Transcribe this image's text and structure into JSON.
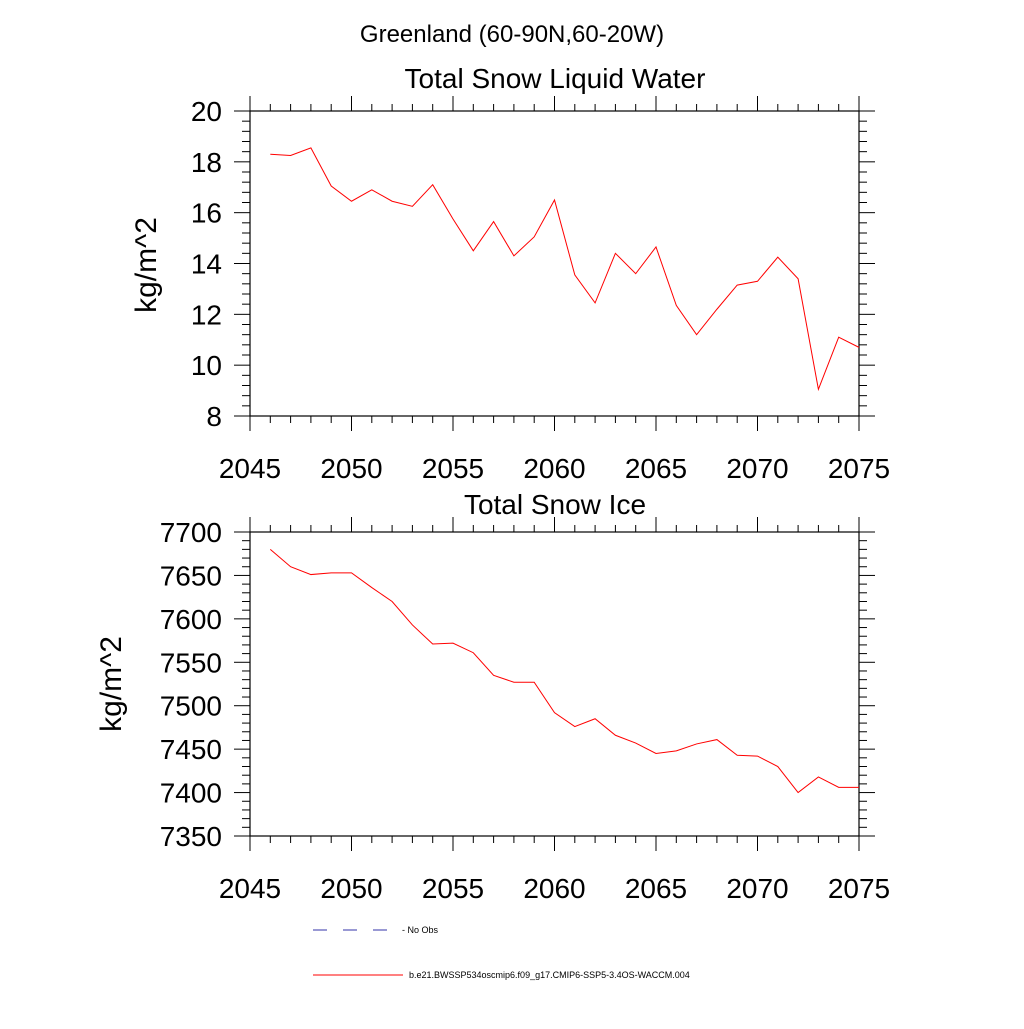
{
  "suptitle": "Greenland (60-90N,60-20W)",
  "colors": {
    "model": "#ff0000",
    "obs": "#3333aa",
    "axis": "#000000"
  },
  "legend": {
    "obs_label": "- No Obs",
    "model_label": "b.e21.BWSSP534oscmip6.f09_g17.CMIP6-SSP5-3.4OS-WACCM.004"
  },
  "chart_data": [
    {
      "type": "line",
      "title": "Total Snow Liquid Water",
      "xlabel": "",
      "ylabel": "kg/m^2",
      "xlim": [
        2045,
        2075
      ],
      "ylim": [
        8,
        20
      ],
      "xticks": [
        2045,
        2050,
        2055,
        2060,
        2065,
        2070,
        2075
      ],
      "yticks": [
        8,
        10,
        12,
        14,
        16,
        18,
        20
      ],
      "x": [
        2046,
        2047,
        2048,
        2049,
        2050,
        2051,
        2052,
        2053,
        2054,
        2055,
        2056,
        2057,
        2058,
        2059,
        2060,
        2061,
        2062,
        2063,
        2064,
        2065,
        2066,
        2067,
        2068,
        2069,
        2070,
        2071,
        2072,
        2073,
        2074,
        2075
      ],
      "series": [
        {
          "name": "b.e21.BWSSP534oscmip6.f09_g17.CMIP6-SSP5-3.4OS-WACCM.004",
          "values": [
            18.3,
            18.25,
            18.55,
            17.05,
            16.45,
            16.9,
            16.45,
            16.25,
            17.1,
            15.75,
            14.5,
            15.65,
            14.3,
            15.05,
            16.5,
            13.55,
            12.45,
            14.4,
            13.6,
            14.65,
            12.35,
            11.2,
            12.2,
            13.15,
            13.3,
            14.25,
            13.4,
            9.05,
            11.1,
            10.7
          ]
        }
      ]
    },
    {
      "type": "line",
      "title": "Total Snow Ice",
      "xlabel": "",
      "ylabel": "kg/m^2",
      "xlim": [
        2045,
        2075
      ],
      "ylim": [
        7350,
        7700
      ],
      "xticks": [
        2045,
        2050,
        2055,
        2060,
        2065,
        2070,
        2075
      ],
      "yticks": [
        7350,
        7400,
        7450,
        7500,
        7550,
        7600,
        7650,
        7700
      ],
      "x": [
        2046,
        2047,
        2048,
        2049,
        2050,
        2051,
        2052,
        2053,
        2054,
        2055,
        2056,
        2057,
        2058,
        2059,
        2060,
        2061,
        2062,
        2063,
        2064,
        2065,
        2066,
        2067,
        2068,
        2069,
        2070,
        2071,
        2072,
        2073,
        2074,
        2075
      ],
      "series": [
        {
          "name": "b.e21.BWSSP534oscmip6.f09_g17.CMIP6-SSP5-3.4OS-WACCM.004",
          "values": [
            7680,
            7660,
            7651,
            7653,
            7653,
            7636,
            7620,
            7593,
            7571,
            7572,
            7561,
            7535,
            7527,
            7527,
            7492,
            7476,
            7485,
            7466,
            7457,
            7445,
            7448,
            7456,
            7461,
            7443,
            7442,
            7430,
            7400,
            7418,
            7406,
            7406
          ]
        }
      ]
    }
  ]
}
